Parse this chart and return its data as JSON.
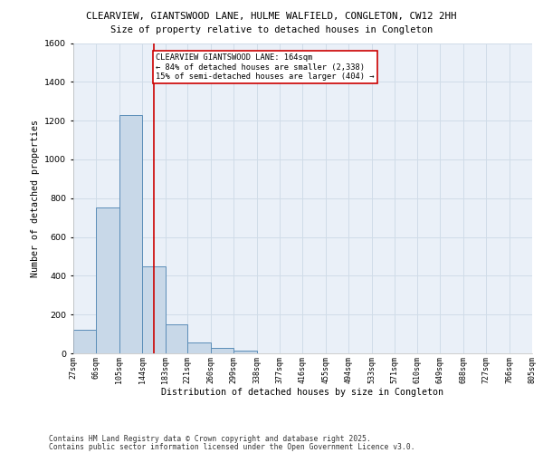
{
  "title_line1": "CLEARVIEW, GIANTSWOOD LANE, HULME WALFIELD, CONGLETON, CW12 2HH",
  "title_line2": "Size of property relative to detached houses in Congleton",
  "xlabel": "Distribution of detached houses by size in Congleton",
  "ylabel": "Number of detached properties",
  "bar_edges": [
    27,
    66,
    105,
    144,
    183,
    221,
    260,
    299,
    338,
    377,
    416,
    455,
    494,
    533,
    571,
    610,
    649,
    688,
    727,
    766,
    805
  ],
  "bar_heights": [
    120,
    750,
    1230,
    450,
    150,
    58,
    30,
    15,
    0,
    0,
    0,
    0,
    0,
    0,
    0,
    0,
    0,
    0,
    0,
    0
  ],
  "bar_color": "#c8d8e8",
  "bar_edge_color": "#5b8db8",
  "vline_x": 164,
  "vline_color": "#cc0000",
  "annotation_text": "CLEARVIEW GIANTSWOOD LANE: 164sqm\n← 84% of detached houses are smaller (2,338)\n15% of semi-detached houses are larger (404) →",
  "annotation_box_color": "#ffffff",
  "annotation_box_edgecolor": "#cc0000",
  "ylim": [
    0,
    1600
  ],
  "yticks": [
    0,
    200,
    400,
    600,
    800,
    1000,
    1200,
    1400,
    1600
  ],
  "tick_labels": [
    "27sqm",
    "66sqm",
    "105sqm",
    "144sqm",
    "183sqm",
    "221sqm",
    "260sqm",
    "299sqm",
    "338sqm",
    "377sqm",
    "416sqm",
    "455sqm",
    "494sqm",
    "533sqm",
    "571sqm",
    "610sqm",
    "649sqm",
    "688sqm",
    "727sqm",
    "766sqm",
    "805sqm"
  ],
  "grid_color": "#d0dce8",
  "bg_color": "#eaf0f8",
  "footer1": "Contains HM Land Registry data © Crown copyright and database right 2025.",
  "footer2": "Contains public sector information licensed under the Open Government Licence v3.0."
}
